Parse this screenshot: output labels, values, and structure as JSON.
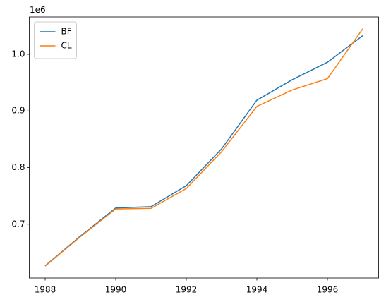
{
  "chart_data": {
    "type": "line",
    "x": [
      1988,
      1989,
      1990,
      1991,
      1992,
      1993,
      1994,
      1995,
      1996,
      1997
    ],
    "series": [
      {
        "name": "BF",
        "color": "#1f77b4",
        "values": [
          626600,
          679000,
          728600,
          731000,
          768000,
          833000,
          919000,
          955000,
          986000,
          1033000
        ]
      },
      {
        "name": "CL",
        "color": "#ff7f0e",
        "values": [
          626000,
          678000,
          727000,
          728000,
          763000,
          828000,
          908000,
          937000,
          957000,
          1045000
        ]
      }
    ],
    "xlim": [
      1987.55,
      1997.45
    ],
    "xticks": [
      1988,
      1990,
      1992,
      1994,
      1996
    ],
    "ylim": [
      605000,
      1066000
    ],
    "yticks": [
      {
        "value": 700000,
        "label": "0.7"
      },
      {
        "value": 800000,
        "label": "0.8"
      },
      {
        "value": 900000,
        "label": "0.9"
      },
      {
        "value": 1000000,
        "label": "1.0"
      }
    ],
    "y_offset_label": "1e6",
    "legend": "upper left",
    "grid": false
  }
}
